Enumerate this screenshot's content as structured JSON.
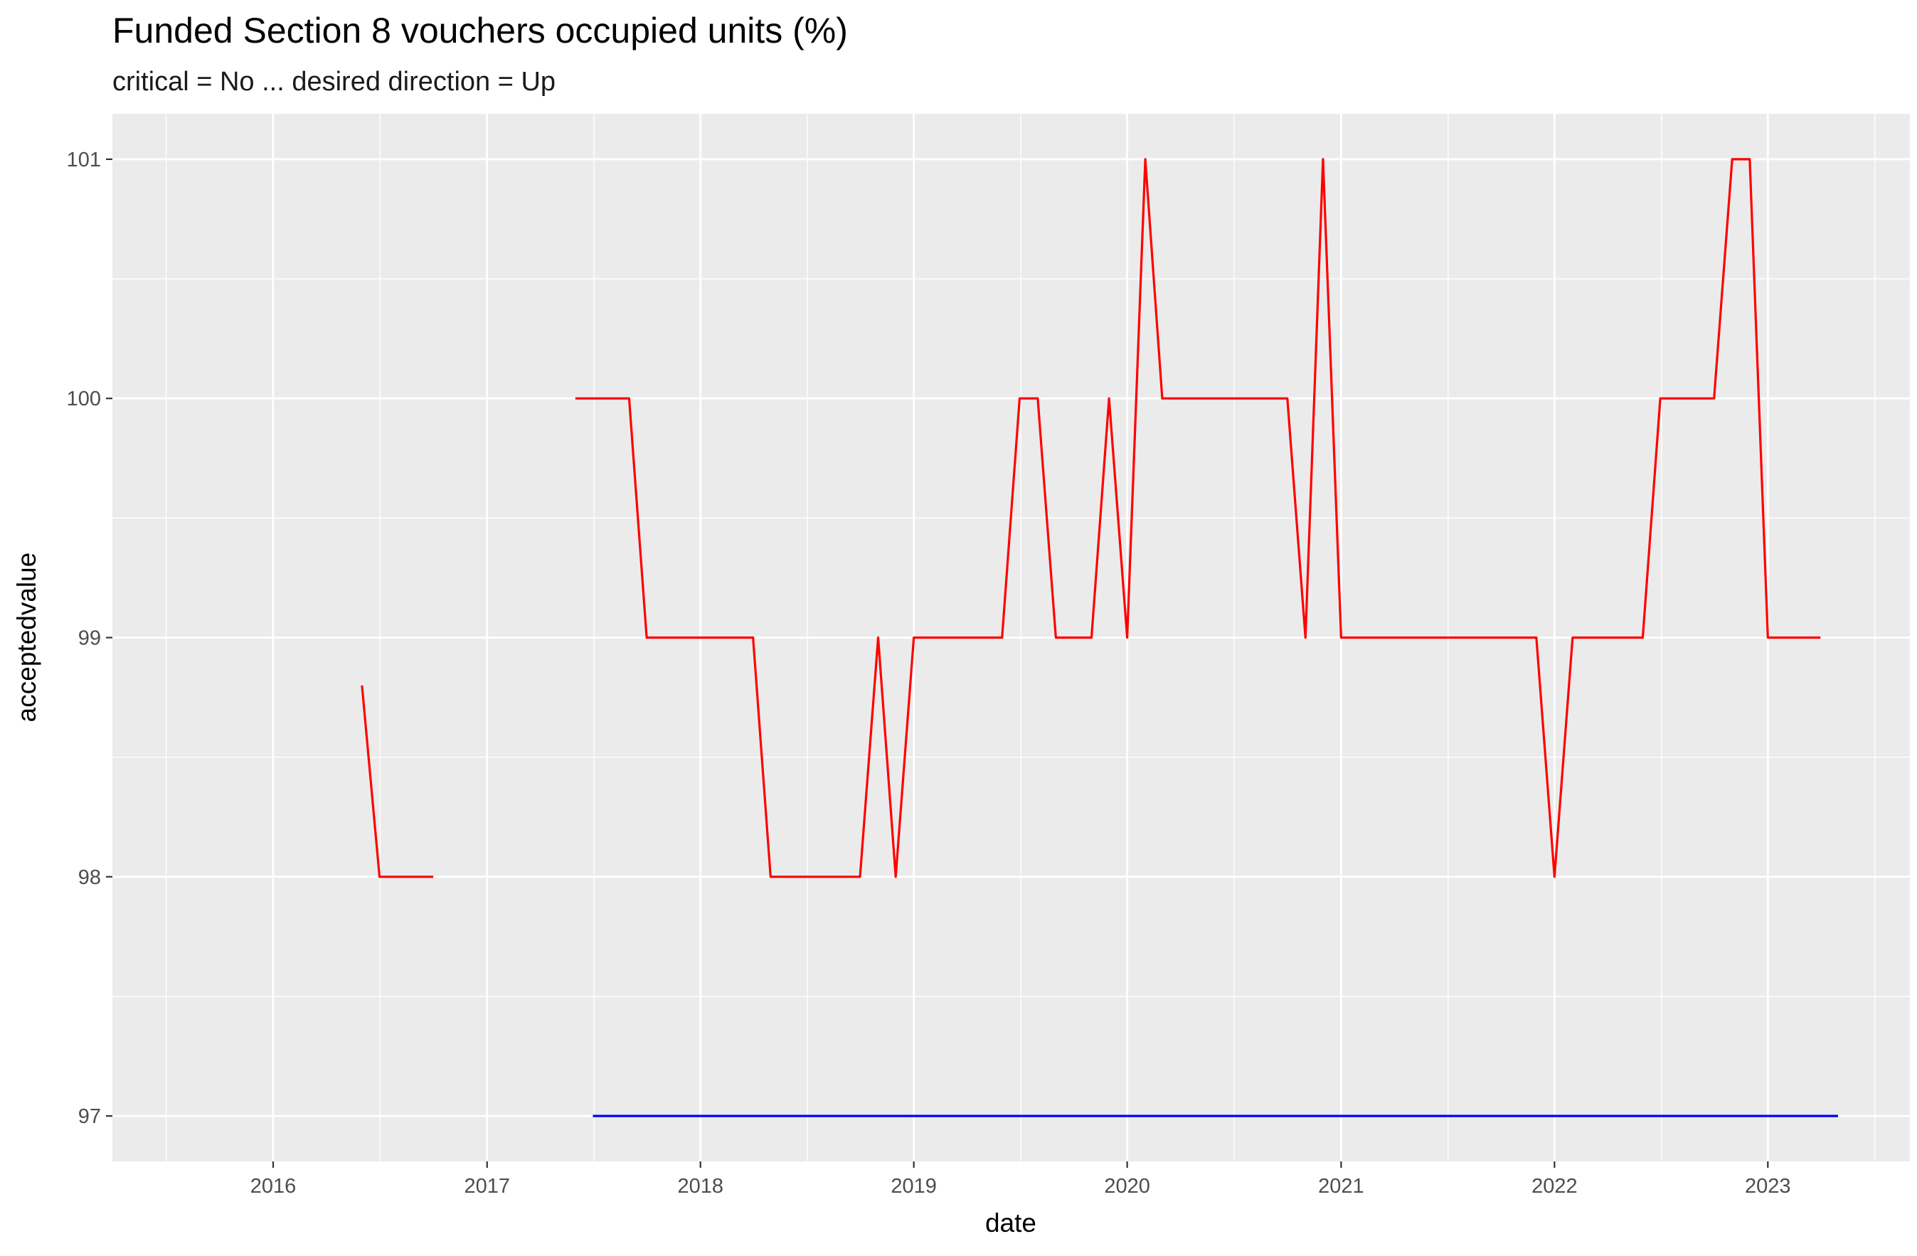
{
  "chart_data": {
    "type": "line",
    "title": "Funded Section 8 vouchers occupied units (%)",
    "subtitle": "critical = No ... desired direction = Up",
    "xlabel": "date",
    "ylabel": "acceptedvalue",
    "xlim": [
      "2015-04-01",
      "2023-09-01"
    ],
    "ylim": [
      96.81,
      101.19
    ],
    "x_ticks": [
      "2016-01-01",
      "2017-01-01",
      "2018-01-01",
      "2019-01-01",
      "2020-01-01",
      "2021-01-01",
      "2022-01-01",
      "2023-01-01"
    ],
    "x_tick_labels": [
      "2016",
      "2017",
      "2018",
      "2019",
      "2020",
      "2021",
      "2022",
      "2023"
    ],
    "y_ticks": [
      97,
      98,
      99,
      100,
      101
    ],
    "y_tick_labels": [
      "97",
      "98",
      "99",
      "100",
      "101"
    ],
    "grid": true,
    "panel_background": "#ebebeb",
    "grid_color": "#ffffff",
    "series": [
      {
        "color": "#ff0000",
        "segments": [
          [
            [
              "2016-06-01",
              98.8
            ],
            [
              "2016-07-01",
              98
            ],
            [
              "2016-08-01",
              98
            ],
            [
              "2016-09-01",
              98
            ],
            [
              "2016-10-01",
              98
            ]
          ],
          [
            [
              "2017-06-01",
              100
            ],
            [
              "2017-07-01",
              100
            ],
            [
              "2017-08-01",
              100
            ],
            [
              "2017-09-01",
              100
            ],
            [
              "2017-10-01",
              99
            ],
            [
              "2017-11-01",
              99
            ],
            [
              "2017-12-01",
              99
            ],
            [
              "2018-01-01",
              99
            ],
            [
              "2018-02-01",
              99
            ],
            [
              "2018-03-01",
              99
            ],
            [
              "2018-04-01",
              99
            ],
            [
              "2018-05-01",
              98
            ],
            [
              "2018-06-01",
              98
            ],
            [
              "2018-07-01",
              98
            ],
            [
              "2018-08-01",
              98
            ],
            [
              "2018-09-01",
              98
            ],
            [
              "2018-10-01",
              98
            ],
            [
              "2018-11-01",
              99
            ],
            [
              "2018-12-01",
              98
            ],
            [
              "2019-01-01",
              99
            ],
            [
              "2019-02-01",
              99
            ],
            [
              "2019-03-01",
              99
            ],
            [
              "2019-04-01",
              99
            ],
            [
              "2019-05-01",
              99
            ],
            [
              "2019-06-01",
              99
            ],
            [
              "2019-07-01",
              100
            ],
            [
              "2019-08-01",
              100
            ],
            [
              "2019-09-01",
              99
            ],
            [
              "2019-10-01",
              99
            ],
            [
              "2019-11-01",
              99
            ],
            [
              "2019-12-01",
              100
            ],
            [
              "2020-01-01",
              99
            ],
            [
              "2020-02-01",
              101
            ],
            [
              "2020-03-01",
              100
            ],
            [
              "2020-04-01",
              100
            ],
            [
              "2020-05-01",
              100
            ],
            [
              "2020-06-01",
              100
            ],
            [
              "2020-07-01",
              100
            ],
            [
              "2020-08-01",
              100
            ],
            [
              "2020-09-01",
              100
            ],
            [
              "2020-10-01",
              100
            ],
            [
              "2020-11-01",
              99
            ],
            [
              "2020-12-01",
              101
            ],
            [
              "2021-01-01",
              99
            ],
            [
              "2021-02-01",
              99
            ],
            [
              "2021-03-01",
              99
            ],
            [
              "2021-04-01",
              99
            ],
            [
              "2021-05-01",
              99
            ],
            [
              "2021-06-01",
              99
            ],
            [
              "2021-07-01",
              99
            ],
            [
              "2021-08-01",
              99
            ],
            [
              "2021-09-01",
              99
            ],
            [
              "2021-10-01",
              99
            ],
            [
              "2021-11-01",
              99
            ],
            [
              "2021-12-01",
              99
            ],
            [
              "2022-01-01",
              98
            ],
            [
              "2022-02-01",
              99
            ],
            [
              "2022-03-01",
              99
            ],
            [
              "2022-04-01",
              99
            ],
            [
              "2022-05-01",
              99
            ],
            [
              "2022-06-01",
              99
            ],
            [
              "2022-07-01",
              100
            ],
            [
              "2022-08-01",
              100
            ],
            [
              "2022-09-01",
              100
            ],
            [
              "2022-10-01",
              100
            ],
            [
              "2022-11-01",
              101
            ],
            [
              "2022-12-01",
              101
            ],
            [
              "2023-01-01",
              99
            ],
            [
              "2023-02-01",
              99
            ],
            [
              "2023-03-01",
              99
            ],
            [
              "2023-04-01",
              99
            ]
          ]
        ]
      },
      {
        "color": "#0000ff",
        "segments": [
          [
            [
              "2017-07-01",
              97
            ],
            [
              "2023-05-01",
              97
            ]
          ]
        ]
      }
    ]
  }
}
